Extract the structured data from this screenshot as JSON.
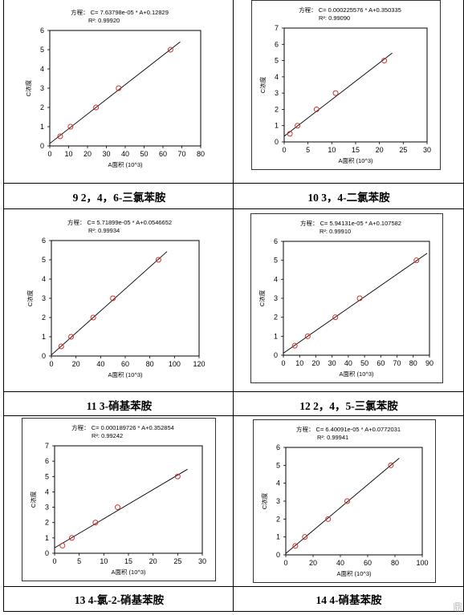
{
  "cells": [
    {
      "caption": "9 2，4，6-三氯苯胺",
      "equation": "方程： C= 7.63798e-05 * A+0.12829",
      "r2": "R²: 0.99920",
      "chart_data": {
        "type": "scatter",
        "x": [
          5.5,
          11,
          24.5,
          36.5,
          64
        ],
        "y": [
          0.5,
          1,
          2,
          3,
          5
        ],
        "xlim": [
          0,
          80
        ],
        "ylim": [
          0,
          6
        ],
        "xticks": [
          0,
          10,
          20,
          30,
          40,
          50,
          60,
          70,
          80
        ],
        "yticks": [
          0,
          1,
          2,
          3,
          4,
          5,
          6
        ],
        "fit": {
          "slope_per_1000": 0.0763798,
          "intercept": 0.12829
        },
        "xlabel": "A面积 (10^3)",
        "ylabel": "C浓度"
      }
    },
    {
      "caption": "10 3，4-二氯苯胺",
      "equation": "方程： C= 0.000225576 * A+0.350335",
      "r2": "R²: 0.99090",
      "chart_data": {
        "type": "scatter",
        "x": [
          1.2,
          2.8,
          6.8,
          10.8,
          21
        ],
        "y": [
          0.5,
          1,
          2,
          3,
          5
        ],
        "xlim": [
          0,
          30
        ],
        "ylim": [
          0,
          7
        ],
        "xticks": [
          0,
          5,
          10,
          15,
          20,
          25,
          30
        ],
        "yticks": [
          0,
          1,
          2,
          3,
          4,
          5,
          6,
          7
        ],
        "fit": {
          "slope_per_1000": 0.225576,
          "intercept": 0.350335
        },
        "xlabel": "A面积 (10^3)",
        "ylabel": "C浓度"
      }
    },
    {
      "caption": "11 3-硝基苯胺",
      "equation": "方程： C= 5.71899e-05 * A+0.0546652",
      "r2": "R²: 0.99934",
      "chart_data": {
        "type": "scatter",
        "x": [
          8,
          16,
          34,
          50,
          87
        ],
        "y": [
          0.5,
          1,
          2,
          3,
          5
        ],
        "xlim": [
          0,
          120
        ],
        "ylim": [
          0,
          6
        ],
        "xticks": [
          0,
          20,
          40,
          60,
          80,
          100,
          120
        ],
        "yticks": [
          0,
          1,
          2,
          3,
          4,
          5,
          6
        ],
        "fit": {
          "slope_per_1000": 0.0571899,
          "intercept": 0.0546652
        },
        "xlabel": "A面积 (10^3)",
        "ylabel": "C浓度"
      }
    },
    {
      "caption": "12 2，4，5-三氯苯胺",
      "equation": "方程： C= 5.94131e-05 * A+0.107582",
      "r2": "R²: 0.99910",
      "chart_data": {
        "type": "scatter",
        "x": [
          7,
          15,
          32,
          47,
          82
        ],
        "y": [
          0.5,
          1,
          2,
          3,
          5
        ],
        "xlim": [
          0,
          90
        ],
        "ylim": [
          0,
          6
        ],
        "xticks": [
          0,
          10,
          20,
          30,
          40,
          50,
          60,
          70,
          80,
          90
        ],
        "yticks": [
          0,
          1,
          2,
          3,
          4,
          5,
          6
        ],
        "fit": {
          "slope_per_1000": 0.0594131,
          "intercept": 0.107582
        },
        "xlabel": "A面积 (10^3)",
        "ylabel": "C浓度"
      }
    },
    {
      "caption": "13 4-氯-2-硝基苯胺",
      "equation": "方程： C= 0.000189726 * A+0.352854",
      "r2": "R²: 0.99242",
      "chart_data": {
        "type": "scatter",
        "x": [
          1.6,
          3.5,
          8.3,
          12.8,
          25
        ],
        "y": [
          0.5,
          1,
          2,
          3,
          5
        ],
        "xlim": [
          0,
          30
        ],
        "ylim": [
          0,
          7
        ],
        "xticks": [
          0,
          5,
          10,
          15,
          20,
          25,
          30
        ],
        "yticks": [
          0,
          1,
          2,
          3,
          4,
          5,
          6,
          7
        ],
        "fit": {
          "slope_per_1000": 0.189726,
          "intercept": 0.352854
        },
        "xlabel": "A面积 (10^3)",
        "ylabel": "C浓度"
      }
    },
    {
      "caption": "14 4-硝基苯胺",
      "equation": "方程： C= 6.40091e-05 * A+0.0772031",
      "r2": "R²: 0.99941",
      "chart_data": {
        "type": "scatter",
        "x": [
          7,
          14,
          31,
          45,
          77
        ],
        "y": [
          0.5,
          1,
          2,
          3,
          5
        ],
        "xlim": [
          0,
          100
        ],
        "ylim": [
          0,
          6
        ],
        "xticks": [
          0,
          20,
          40,
          60,
          80,
          100
        ],
        "yticks": [
          0,
          1,
          2,
          3,
          4,
          5,
          6
        ],
        "fit": {
          "slope_per_1000": 0.0640091,
          "intercept": 0.0772031
        },
        "xlabel": "A面积 (10^3)",
        "ylabel": "C浓度"
      }
    }
  ],
  "watermark": "鼎"
}
